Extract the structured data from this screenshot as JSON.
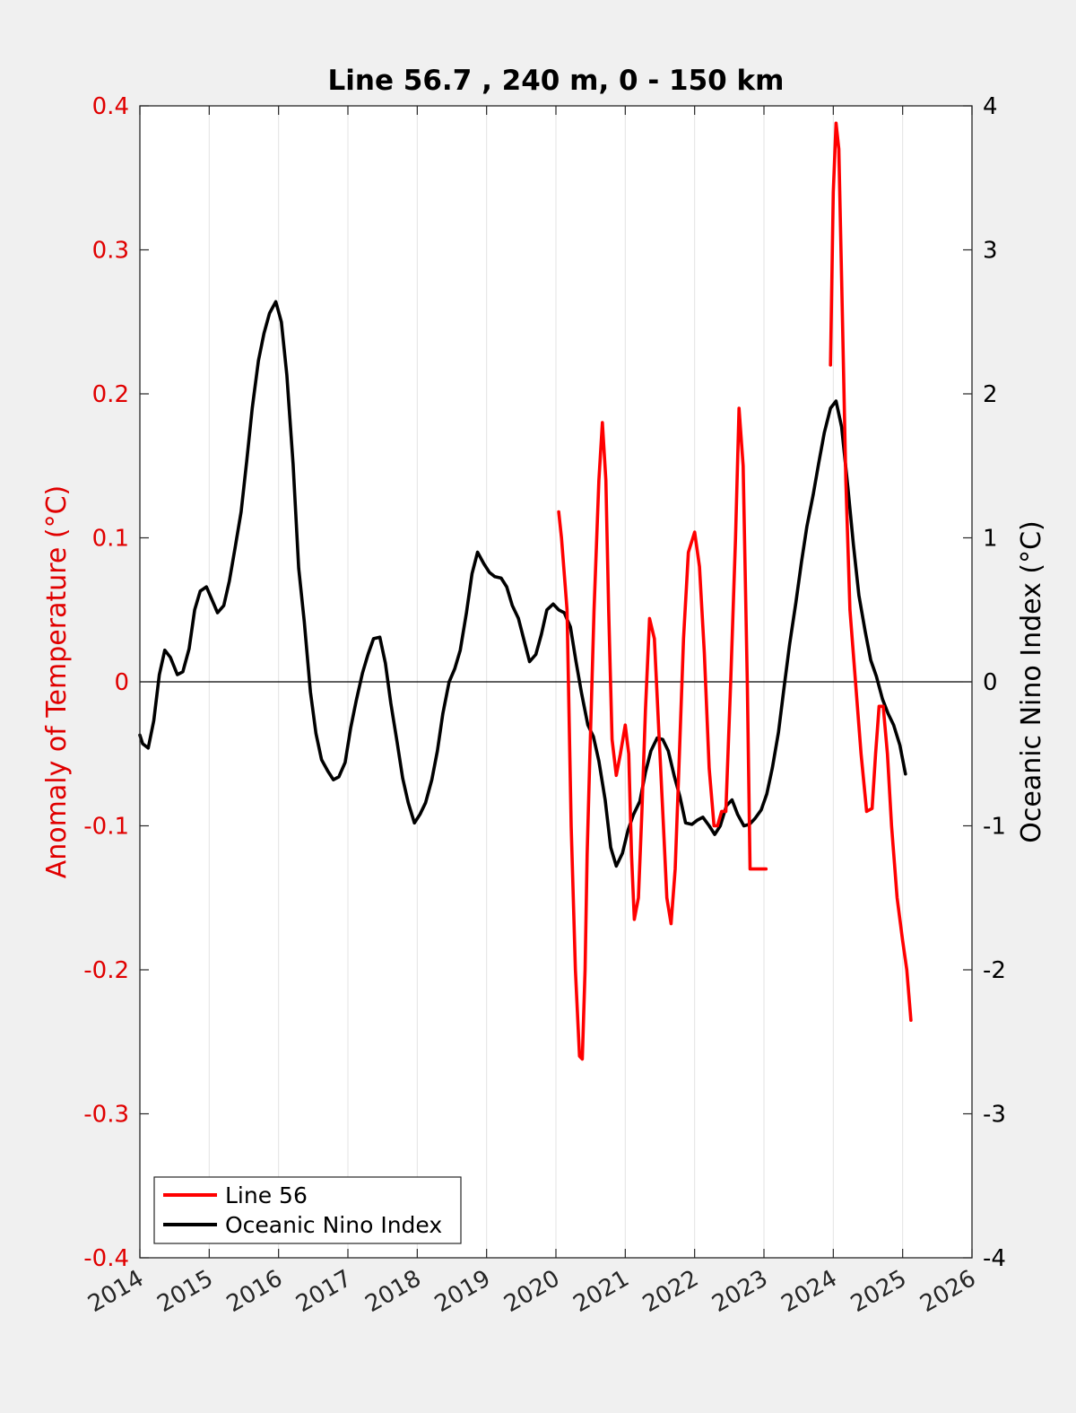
{
  "chart_data": {
    "type": "line",
    "title": "Line 56.7 , 240 m, 0 - 150 km",
    "ylabel_left": "Anomaly of Temperature (°C)",
    "ylabel_right": "Oceanic Nino Index (°C)",
    "xlim": [
      2014,
      2026
    ],
    "ylim_left": [
      -0.4,
      0.4
    ],
    "ylim_right": [
      -4,
      4
    ],
    "x_ticks": [
      2014,
      2015,
      2016,
      2017,
      2018,
      2019,
      2020,
      2021,
      2022,
      2023,
      2024,
      2025,
      2026
    ],
    "x_tick_labels": [
      "2014",
      "2015",
      "2016",
      "2017",
      "2018",
      "2019",
      "2020",
      "2021",
      "2022",
      "2023",
      "2024",
      "2025",
      "2026"
    ],
    "y_ticks_left": [
      0.4,
      0.3,
      0.2,
      0.1,
      0,
      -0.1,
      -0.2,
      -0.3,
      -0.4
    ],
    "y_tick_labels_left": [
      "0.4",
      "0.3",
      "0.2",
      "0.1",
      "0",
      "-0.1",
      "-0.2",
      "-0.3",
      "-0.4"
    ],
    "y_ticks_right": [
      4,
      3,
      2,
      1,
      0,
      -1,
      -2,
      -3,
      -4
    ],
    "y_tick_labels_right": [
      "4",
      "3",
      "2",
      "1",
      "0",
      "-1",
      "-2",
      "-3",
      "-4"
    ],
    "grid": "vertical",
    "legend_position": "bottom-left",
    "series": [
      {
        "name": "Line 56",
        "axis": "left",
        "color": "#ff0000",
        "segments": [
          {
            "x": [
              2020.04,
              2020.08,
              2020.16,
              2020.22,
              2020.28,
              2020.34,
              2020.38,
              2020.42,
              2020.45,
              2020.49,
              2020.55,
              2020.62,
              2020.67,
              2020.72,
              2020.76,
              2020.81,
              2020.87,
              2020.93,
              2021.0,
              2021.05,
              2021.09,
              2021.13,
              2021.19,
              2021.24,
              2021.29,
              2021.35,
              2021.42,
              2021.49,
              2021.55,
              2021.6,
              2021.66,
              2021.72,
              2021.78,
              2021.84,
              2021.91,
              2022.0,
              2022.07,
              2022.14,
              2022.21,
              2022.28,
              2022.33,
              2022.39,
              2022.45,
              2022.52,
              2022.59,
              2022.64,
              2022.7,
              2022.76,
              2022.8,
              2022.85,
              2022.91,
              2022.95,
              2022.99,
              2023.03
            ],
            "y": [
              0.118,
              0.1,
              0.05,
              -0.1,
              -0.2,
              -0.26,
              -0.262,
              -0.2,
              -0.12,
              -0.05,
              0.05,
              0.14,
              0.18,
              0.14,
              0.05,
              -0.04,
              -0.065,
              -0.05,
              -0.03,
              -0.05,
              -0.12,
              -0.165,
              -0.15,
              -0.09,
              -0.02,
              0.044,
              0.03,
              -0.04,
              -0.1,
              -0.15,
              -0.168,
              -0.13,
              -0.05,
              0.03,
              0.09,
              0.104,
              0.08,
              0.02,
              -0.06,
              -0.1,
              -0.1,
              -0.09,
              -0.09,
              0.0,
              0.1,
              0.19,
              0.15,
              0.0,
              -0.13,
              -0.13,
              -0.13,
              -0.13,
              -0.13,
              -0.13
            ]
          },
          {
            "x": [
              2023.96,
              2024.0,
              2024.04,
              2024.08,
              2024.12,
              2024.18,
              2024.24,
              2024.32,
              2024.4,
              2024.48,
              2024.56,
              2024.61,
              2024.66,
              2024.72,
              2024.78,
              2024.84,
              2024.92,
              2025.0,
              2025.06,
              2025.12
            ],
            "y": [
              0.22,
              0.34,
              0.388,
              0.37,
              0.28,
              0.14,
              0.05,
              0.0,
              -0.05,
              -0.09,
              -0.088,
              -0.05,
              -0.017,
              -0.017,
              -0.05,
              -0.1,
              -0.15,
              -0.18,
              -0.2,
              -0.235
            ]
          }
        ]
      },
      {
        "name": "Oceanic Nino Index",
        "axis": "right",
        "color": "#000000",
        "segments": [
          {
            "x": [
              2014.0,
              2014.04,
              2014.12,
              2014.2,
              2014.28,
              2014.36,
              2014.44,
              2014.54,
              2014.62,
              2014.71,
              2014.79,
              2014.87,
              2014.96,
              2015.04,
              2015.12,
              2015.21,
              2015.29,
              2015.37,
              2015.46,
              2015.54,
              2015.62,
              2015.71,
              2015.79,
              2015.87,
              2015.96,
              2016.04,
              2016.12,
              2016.21,
              2016.29,
              2016.37,
              2016.46,
              2016.54,
              2016.62,
              2016.71,
              2016.79,
              2016.87,
              2016.96,
              2017.04,
              2017.12,
              2017.21,
              2017.29,
              2017.37,
              2017.46,
              2017.54,
              2017.62,
              2017.71,
              2017.79,
              2017.87,
              2017.96,
              2018.04,
              2018.12,
              2018.21,
              2018.29,
              2018.37,
              2018.46,
              2018.54,
              2018.62,
              2018.71,
              2018.79,
              2018.87,
              2018.96,
              2019.04,
              2019.12,
              2019.21,
              2019.29,
              2019.37,
              2019.46,
              2019.54,
              2019.62,
              2019.71,
              2019.79,
              2019.87,
              2019.96,
              2020.04,
              2020.12,
              2020.21,
              2020.29,
              2020.37,
              2020.46,
              2020.54,
              2020.62,
              2020.71,
              2020.79,
              2020.87,
              2020.96,
              2021.04,
              2021.12,
              2021.21,
              2021.29,
              2021.37,
              2021.46,
              2021.54,
              2021.62,
              2021.71,
              2021.79,
              2021.87,
              2021.96,
              2022.04,
              2022.12,
              2022.21,
              2022.29,
              2022.37,
              2022.46,
              2022.54,
              2022.62,
              2022.71,
              2022.79,
              2022.87,
              2022.96,
              2023.04,
              2023.12,
              2023.21,
              2023.29,
              2023.37,
              2023.46,
              2023.54,
              2023.62,
              2023.71,
              2023.79,
              2023.87,
              2023.96,
              2024.04,
              2024.12,
              2024.21,
              2024.29,
              2024.37,
              2024.46,
              2024.54,
              2024.62,
              2024.71,
              2024.79,
              2024.87,
              2024.96,
              2025.04
            ],
            "y": [
              -0.37,
              -0.43,
              -0.46,
              -0.27,
              0.05,
              0.22,
              0.17,
              0.05,
              0.07,
              0.23,
              0.5,
              0.63,
              0.66,
              0.57,
              0.48,
              0.53,
              0.7,
              0.92,
              1.18,
              1.53,
              1.9,
              2.23,
              2.42,
              2.56,
              2.64,
              2.5,
              2.13,
              1.51,
              0.79,
              0.42,
              -0.07,
              -0.36,
              -0.54,
              -0.62,
              -0.68,
              -0.66,
              -0.56,
              -0.32,
              -0.13,
              0.06,
              0.19,
              0.3,
              0.31,
              0.13,
              -0.15,
              -0.42,
              -0.67,
              -0.84,
              -0.98,
              -0.92,
              -0.84,
              -0.68,
              -0.48,
              -0.22,
              0.0,
              0.09,
              0.22,
              0.48,
              0.75,
              0.9,
              0.82,
              0.76,
              0.73,
              0.72,
              0.66,
              0.53,
              0.44,
              0.29,
              0.14,
              0.19,
              0.33,
              0.5,
              0.54,
              0.5,
              0.48,
              0.38,
              0.14,
              -0.08,
              -0.3,
              -0.38,
              -0.55,
              -0.82,
              -1.15,
              -1.28,
              -1.19,
              -1.03,
              -0.92,
              -0.83,
              -0.63,
              -0.48,
              -0.39,
              -0.4,
              -0.48,
              -0.66,
              -0.8,
              -0.98,
              -0.99,
              -0.96,
              -0.94,
              -1.0,
              -1.06,
              -1.0,
              -0.86,
              -0.82,
              -0.92,
              -1.0,
              -0.99,
              -0.95,
              -0.89,
              -0.78,
              -0.6,
              -0.35,
              -0.04,
              0.26,
              0.55,
              0.83,
              1.08,
              1.3,
              1.52,
              1.73,
              1.9,
              1.95,
              1.77,
              1.35,
              0.95,
              0.6,
              0.35,
              0.15,
              0.04,
              -0.12,
              -0.22,
              -0.3,
              -0.44,
              -0.64
            ]
          }
        ]
      }
    ]
  }
}
